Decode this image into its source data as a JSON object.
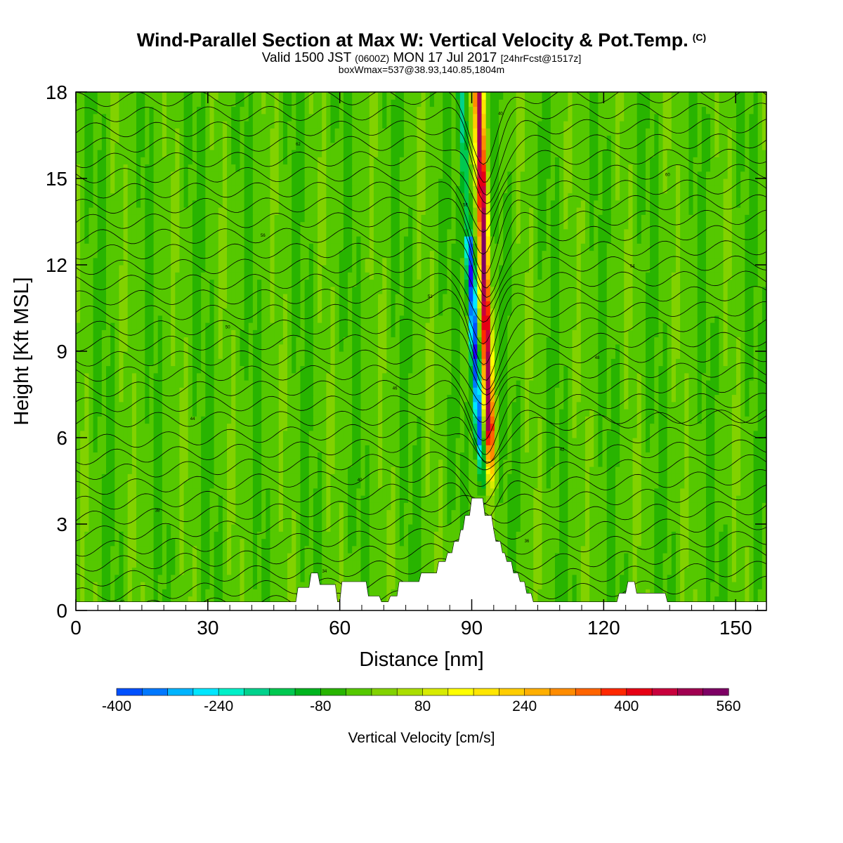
{
  "header": {
    "title": "Wind-Parallel Section at Max W: Vertical Velocity & Pot.Temp.",
    "copyright": "(C)",
    "valid_prefix": "Valid 1500 JST",
    "valid_utc": "(0600Z)",
    "valid_date": "MON 17 Jul 2017",
    "forecast": "[24hrFcst@1517z]",
    "box_info": "boxWmax=537@38.93,140.85,1804m"
  },
  "chart_data": {
    "type": "heatmap",
    "xlabel": "Distance [nm]",
    "ylabel": "Height [Kft MSL]",
    "xlim": [
      0,
      157
    ],
    "ylim": [
      0,
      18
    ],
    "x_ticks": [
      "0",
      "30",
      "60",
      "90",
      "120",
      "150"
    ],
    "x_tick_values": [
      0,
      30,
      60,
      90,
      120,
      150
    ],
    "y_ticks": [
      "0",
      "3",
      "6",
      "9",
      "12",
      "15",
      "18"
    ],
    "y_tick_values": [
      0,
      3,
      6,
      9,
      12,
      15,
      18
    ],
    "colorbar": {
      "title": "Vertical Velocity [cm/s]",
      "labels": [
        "-400",
        "-240",
        "-80",
        "80",
        "240",
        "400",
        "560"
      ],
      "label_values": [
        -400,
        -240,
        -80,
        80,
        240,
        400,
        560
      ],
      "min": -400,
      "max": 560,
      "step": 40,
      "colors": [
        "#1e00ff",
        "#0050ff",
        "#0078ff",
        "#00b4ff",
        "#00e6ff",
        "#00f0c8",
        "#00d28c",
        "#00c850",
        "#00b41e",
        "#28b400",
        "#55c800",
        "#82d200",
        "#aade00",
        "#d7eb00",
        "#ffff00",
        "#ffe600",
        "#ffcd00",
        "#ffaf00",
        "#ff8c00",
        "#ff6400",
        "#ff2800",
        "#e60014",
        "#c8003c",
        "#a00050",
        "#7d0064",
        "#550082"
      ]
    },
    "main_updraft": {
      "x": 94.5,
      "peak_w": 537
    },
    "main_downdraft": {
      "x": 92.5,
      "peak_w": -400
    },
    "terrain_profile": [
      [
        0,
        0.3
      ],
      [
        50,
        0.3
      ],
      [
        50.5,
        0.8
      ],
      [
        53,
        0.8
      ],
      [
        53.5,
        1.3
      ],
      [
        55,
        1.3
      ],
      [
        55.5,
        0.9
      ],
      [
        59,
        0.9
      ],
      [
        59.5,
        0.3
      ],
      [
        60,
        0.3
      ],
      [
        60.5,
        1
      ],
      [
        66,
        1
      ],
      [
        66.5,
        0.5
      ],
      [
        69,
        0.5
      ],
      [
        69.5,
        0.3
      ],
      [
        71,
        0.3
      ],
      [
        71.5,
        0.5
      ],
      [
        73,
        0.5
      ],
      [
        73.5,
        1
      ],
      [
        78,
        1
      ],
      [
        78.5,
        1.3
      ],
      [
        82,
        1.3
      ],
      [
        82.5,
        1.7
      ],
      [
        84,
        1.7
      ],
      [
        84.5,
        2
      ],
      [
        85.5,
        2
      ],
      [
        86,
        2.4
      ],
      [
        87,
        2.4
      ],
      [
        87.5,
        2.8
      ],
      [
        88,
        2.8
      ],
      [
        88.5,
        3.3
      ],
      [
        89.5,
        3.3
      ],
      [
        90,
        3.9
      ],
      [
        92.5,
        3.9
      ],
      [
        93,
        3.3
      ],
      [
        94.5,
        3.3
      ],
      [
        95,
        2.8
      ],
      [
        95.5,
        2.4
      ],
      [
        96.5,
        2.4
      ],
      [
        97,
        2
      ],
      [
        97.5,
        2
      ],
      [
        98,
        1.7
      ],
      [
        99,
        1.7
      ],
      [
        99.5,
        1.3
      ],
      [
        100.5,
        1.3
      ],
      [
        101,
        1
      ],
      [
        102,
        1
      ],
      [
        102.5,
        0.6
      ],
      [
        103.5,
        0.6
      ],
      [
        104,
        0.3
      ],
      [
        123,
        0.3
      ],
      [
        123.5,
        0.6
      ],
      [
        125,
        0.6
      ],
      [
        125.5,
        1
      ],
      [
        127,
        1
      ],
      [
        127.5,
        0.6
      ],
      [
        134,
        0.6
      ],
      [
        134.5,
        0.3
      ],
      [
        157,
        0.3
      ]
    ],
    "theta_contour_labels": [
      "40",
      "34",
      "36",
      "38",
      "40",
      "42",
      "44",
      "46",
      "48",
      "50",
      "52",
      "54",
      "56",
      "58",
      "60",
      "62"
    ]
  }
}
